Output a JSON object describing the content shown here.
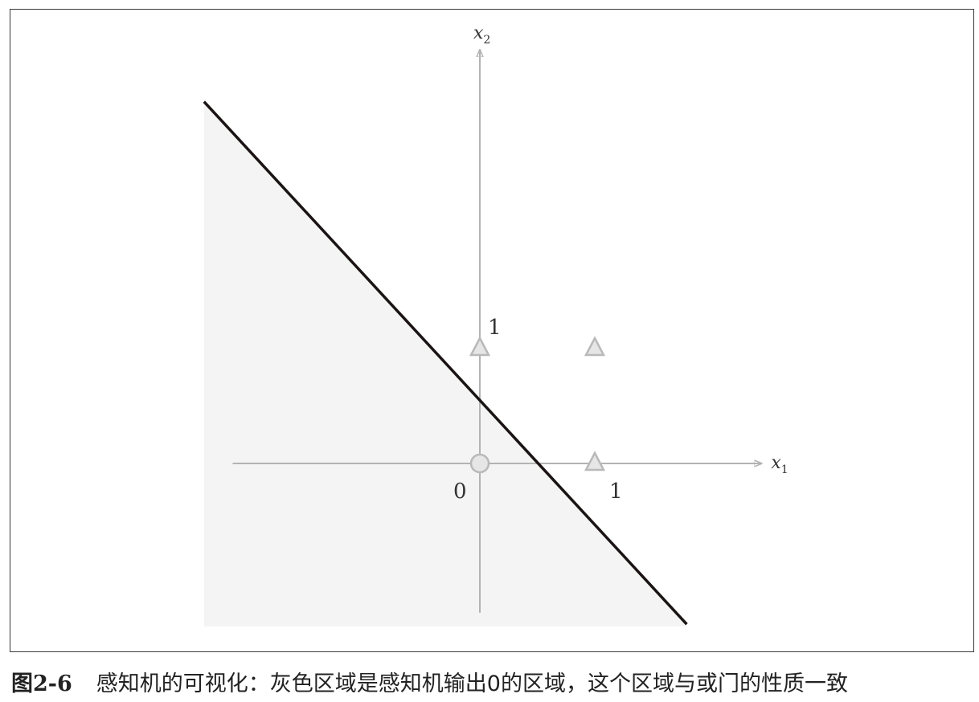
{
  "caption": {
    "figure_number": "图2-6",
    "text": "感知机的可视化：灰色区域是感知机输出0的区域，这个区域与或门的性质一致"
  },
  "axes": {
    "x_label": "x",
    "x_subscript": "1",
    "y_label": "x",
    "y_subscript": "2",
    "origin_label": "0",
    "x_tick_label": "1",
    "y_tick_label": "1"
  },
  "chart_data": {
    "type": "scatter",
    "xlabel": "x1",
    "ylabel": "x2",
    "xlim": [
      -2.15,
      2.45
    ],
    "ylim": [
      -1.3,
      3.6
    ],
    "decision_boundary": {
      "equation": "x1 + x2 = 0.5",
      "from": [
        -2.4,
        3.15
      ],
      "to": [
        1.8,
        -1.4
      ]
    },
    "shaded_region": "output 0 (below boundary)",
    "colors": {
      "region_fill": "#f3f4f3",
      "boundary_line": "#1a1414",
      "axis": "#b3b3b3",
      "marker": "#c4c4c4"
    },
    "points": [
      {
        "x": 0,
        "y": 0,
        "marker": "circle"
      },
      {
        "x": 1,
        "y": 0,
        "marker": "triangle"
      },
      {
        "x": 0,
        "y": 1,
        "marker": "triangle"
      },
      {
        "x": 1,
        "y": 1,
        "marker": "triangle"
      }
    ]
  }
}
